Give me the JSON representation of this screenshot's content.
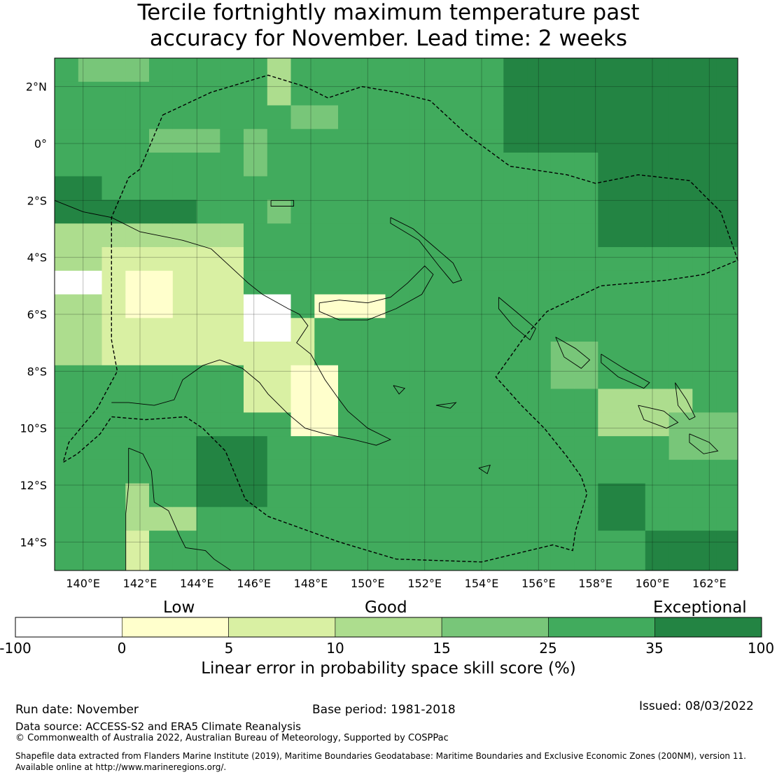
{
  "title": {
    "line1": "Tercile fortnightly maximum temperature past",
    "line2": "accuracy for November. Lead time: 2 weeks"
  },
  "map": {
    "lon_range": [
      139,
      163
    ],
    "lat_range": [
      -15,
      3
    ],
    "lon_ticks": [
      {
        "value": 140,
        "label": "140°E"
      },
      {
        "value": 142,
        "label": "142°E"
      },
      {
        "value": 144,
        "label": "144°E"
      },
      {
        "value": 146,
        "label": "146°E"
      },
      {
        "value": 148,
        "label": "148°E"
      },
      {
        "value": 150,
        "label": "150°E"
      },
      {
        "value": 152,
        "label": "152°E"
      },
      {
        "value": 154,
        "label": "154°E"
      },
      {
        "value": 156,
        "label": "156°E"
      },
      {
        "value": 158,
        "label": "158°E"
      },
      {
        "value": 160,
        "label": "160°E"
      },
      {
        "value": 162,
        "label": "162°E"
      }
    ],
    "lat_ticks": [
      {
        "value": 2,
        "label": "2°N"
      },
      {
        "value": 0,
        "label": "0°"
      },
      {
        "value": -2,
        "label": "2°S"
      },
      {
        "value": -4,
        "label": "4°S"
      },
      {
        "value": -6,
        "label": "6°S"
      },
      {
        "value": -8,
        "label": "8°S"
      },
      {
        "value": -10,
        "label": "10°S"
      },
      {
        "value": -12,
        "label": "12°S"
      },
      {
        "value": -14,
        "label": "14°S"
      }
    ],
    "eez_boundary": [
      [
        142.8,
        1.0
      ],
      [
        144.5,
        1.8
      ],
      [
        146.5,
        2.4
      ],
      [
        147.8,
        2.0
      ],
      [
        148.6,
        1.6
      ],
      [
        149.8,
        2.0
      ],
      [
        151.0,
        1.8
      ],
      [
        152.2,
        1.5
      ],
      [
        153.5,
        0.3
      ],
      [
        155.0,
        -0.8
      ],
      [
        157.0,
        -1.1
      ],
      [
        158.0,
        -1.4
      ],
      [
        159.5,
        -1.1
      ],
      [
        161.3,
        -1.3
      ],
      [
        162.4,
        -2.4
      ],
      [
        163.0,
        -4.1
      ],
      [
        161.8,
        -4.6
      ],
      [
        160.5,
        -4.8
      ],
      [
        158.2,
        -5.0
      ],
      [
        156.3,
        -5.9
      ],
      [
        155.5,
        -6.8
      ],
      [
        154.5,
        -8.2
      ],
      [
        155.4,
        -9.2
      ],
      [
        156.2,
        -10.0
      ],
      [
        157.0,
        -11.0
      ],
      [
        157.5,
        -11.7
      ],
      [
        157.7,
        -12.3
      ],
      [
        157.3,
        -13.6
      ],
      [
        157.2,
        -14.3
      ],
      [
        156.5,
        -14.1
      ],
      [
        154.0,
        -14.7
      ],
      [
        151.0,
        -14.6
      ],
      [
        149.0,
        -14.0
      ],
      [
        146.5,
        -13.1
      ],
      [
        145.7,
        -12.5
      ],
      [
        145.0,
        -10.8
      ],
      [
        144.2,
        -10.0
      ],
      [
        143.6,
        -9.6
      ],
      [
        142.2,
        -9.7
      ],
      [
        141.0,
        -9.6
      ],
      [
        140.6,
        -10.2
      ],
      [
        139.8,
        -10.9
      ],
      [
        139.3,
        -11.2
      ],
      [
        139.5,
        -10.5
      ],
      [
        140.5,
        -9.3
      ],
      [
        141.2,
        -8.0
      ],
      [
        141.0,
        -6.9
      ],
      [
        141.0,
        -2.6
      ],
      [
        141.6,
        -1.2
      ],
      [
        142.0,
        -0.9
      ],
      [
        142.8,
        1.0
      ]
    ],
    "land_png_coast": [
      [
        141.0,
        -2.6
      ],
      [
        142.0,
        -3.1
      ],
      [
        143.5,
        -3.4
      ],
      [
        144.5,
        -3.7
      ],
      [
        145.8,
        -4.9
      ],
      [
        146.3,
        -5.3
      ],
      [
        147.2,
        -5.8
      ],
      [
        147.6,
        -6.0
      ],
      [
        147.9,
        -6.4
      ],
      [
        147.5,
        -7.0
      ],
      [
        148.0,
        -7.4
      ],
      [
        148.5,
        -8.3
      ],
      [
        149.0,
        -9.0
      ],
      [
        149.3,
        -9.4
      ],
      [
        150.0,
        -10.0
      ],
      [
        150.8,
        -10.4
      ],
      [
        150.3,
        -10.6
      ],
      [
        149.5,
        -10.4
      ],
      [
        148.5,
        -10.2
      ],
      [
        147.8,
        -10.0
      ],
      [
        147.2,
        -9.5
      ],
      [
        146.5,
        -8.8
      ],
      [
        146.2,
        -8.4
      ],
      [
        145.6,
        -7.9
      ],
      [
        144.8,
        -7.6
      ],
      [
        144.2,
        -7.8
      ],
      [
        143.5,
        -8.3
      ],
      [
        143.2,
        -9.0
      ],
      [
        142.5,
        -9.2
      ],
      [
        141.6,
        -9.1
      ],
      [
        141.0,
        -9.1
      ]
    ],
    "land_png_coast_west": [
      [
        139.0,
        -2.0
      ],
      [
        140.0,
        -2.4
      ],
      [
        141.0,
        -2.6
      ]
    ],
    "land_newbritain": [
      [
        148.3,
        -5.6
      ],
      [
        149.0,
        -5.5
      ],
      [
        150.0,
        -5.6
      ],
      [
        150.8,
        -5.4
      ],
      [
        151.4,
        -4.9
      ],
      [
        152.0,
        -4.3
      ],
      [
        152.3,
        -4.6
      ],
      [
        151.9,
        -5.3
      ],
      [
        151.0,
        -5.8
      ],
      [
        150.0,
        -6.2
      ],
      [
        149.0,
        -6.2
      ],
      [
        148.3,
        -5.9
      ],
      [
        148.3,
        -5.6
      ]
    ],
    "land_newireland": [
      [
        150.8,
        -2.6
      ],
      [
        151.6,
        -3.0
      ],
      [
        152.3,
        -3.6
      ],
      [
        153.0,
        -4.2
      ],
      [
        153.3,
        -4.8
      ],
      [
        153.0,
        -4.9
      ],
      [
        152.5,
        -4.3
      ],
      [
        151.8,
        -3.4
      ],
      [
        150.8,
        -2.8
      ],
      [
        150.8,
        -2.6
      ]
    ],
    "land_bougainville": [
      [
        154.6,
        -5.4
      ],
      [
        155.2,
        -5.9
      ],
      [
        155.9,
        -6.5
      ],
      [
        155.7,
        -6.9
      ],
      [
        155.1,
        -6.4
      ],
      [
        154.6,
        -5.8
      ],
      [
        154.6,
        -5.4
      ]
    ],
    "land_solomons_a": [
      [
        156.6,
        -6.8
      ],
      [
        157.3,
        -7.2
      ],
      [
        157.8,
        -7.6
      ],
      [
        157.5,
        -7.9
      ],
      [
        156.9,
        -7.5
      ],
      [
        156.6,
        -6.8
      ]
    ],
    "land_solomons_b": [
      [
        158.2,
        -7.4
      ],
      [
        159.0,
        -7.9
      ],
      [
        159.9,
        -8.4
      ],
      [
        159.7,
        -8.6
      ],
      [
        158.8,
        -8.2
      ],
      [
        158.2,
        -7.7
      ],
      [
        158.2,
        -7.4
      ]
    ],
    "land_solomons_c": [
      [
        159.5,
        -9.2
      ],
      [
        160.4,
        -9.4
      ],
      [
        160.9,
        -9.8
      ],
      [
        160.5,
        -10.0
      ],
      [
        159.7,
        -9.7
      ],
      [
        159.5,
        -9.2
      ]
    ],
    "land_solomons_d": [
      [
        160.8,
        -8.4
      ],
      [
        161.2,
        -9.0
      ],
      [
        161.5,
        -9.6
      ],
      [
        161.3,
        -9.7
      ],
      [
        160.9,
        -9.2
      ],
      [
        160.8,
        -8.4
      ]
    ],
    "land_solomons_e": [
      [
        161.3,
        -10.2
      ],
      [
        162.0,
        -10.5
      ],
      [
        162.3,
        -10.8
      ],
      [
        161.8,
        -10.9
      ],
      [
        161.3,
        -10.5
      ],
      [
        161.3,
        -10.2
      ]
    ],
    "land_manus": [
      [
        146.6,
        -2.0
      ],
      [
        147.4,
        -2.0
      ],
      [
        147.4,
        -2.2
      ],
      [
        146.6,
        -2.2
      ],
      [
        146.6,
        -2.0
      ]
    ],
    "land_cape_york": [
      [
        141.6,
        -10.7
      ],
      [
        142.1,
        -10.9
      ],
      [
        142.4,
        -11.5
      ],
      [
        142.5,
        -12.6
      ],
      [
        143.0,
        -12.9
      ],
      [
        143.4,
        -13.8
      ],
      [
        143.6,
        -14.2
      ],
      [
        144.3,
        -14.3
      ],
      [
        144.6,
        -14.6
      ],
      [
        145.2,
        -15.0
      ]
    ],
    "land_cape_york_west": [
      [
        141.6,
        -10.7
      ],
      [
        141.6,
        -12.0
      ],
      [
        141.5,
        -13.0
      ],
      [
        141.5,
        -14.0
      ],
      [
        141.5,
        -15.0
      ]
    ],
    "land_woodlark": [
      [
        152.4,
        -9.2
      ],
      [
        153.1,
        -9.1
      ],
      [
        152.9,
        -9.3
      ],
      [
        152.4,
        -9.2
      ]
    ],
    "land_rossel": [
      [
        153.9,
        -11.4
      ],
      [
        154.3,
        -11.3
      ],
      [
        154.2,
        -11.6
      ],
      [
        153.9,
        -11.4
      ]
    ],
    "land_trobriand": [
      [
        150.9,
        -8.5
      ],
      [
        151.3,
        -8.6
      ],
      [
        151.1,
        -8.8
      ],
      [
        150.9,
        -8.5
      ]
    ]
  },
  "colorbar": {
    "category_labels": [
      "Low",
      "Good",
      "Exceptional"
    ],
    "ticks": [
      "-100",
      "0",
      "5",
      "10",
      "15",
      "25",
      "35",
      "100"
    ],
    "colors": [
      "#ffffff",
      "#ffffcc",
      "#d9f0a3",
      "#addd8e",
      "#78c679",
      "#41ab5d",
      "#238443"
    ],
    "title": "Linear error in probability space skill score (%)"
  },
  "footer": {
    "run_date": "Run date: November",
    "base_period": "Base period: 1981-2018",
    "issued": "Issued: 08/03/2022",
    "data_source": "Data source: ACCESS-S2 and ERA5 Climate Reanalysis",
    "copyright": "© Commonwealth of Australia 2022, Australian Bureau of Meteorology, Supported by COSPPac",
    "shapefile_line1": "Shapefile data extracted from Flanders Marine Institute (2019), Maritime Boundaries Geodatabase: Maritime Boundaries and Exclusive Economic Zones (200NM), version 11.",
    "shapefile_line2": "Available online at http://www.marineregions.org/."
  }
}
